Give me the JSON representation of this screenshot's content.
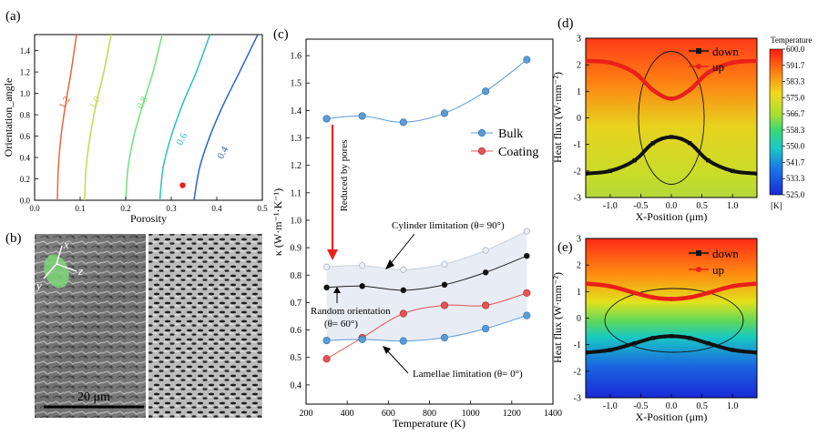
{
  "panels": {
    "a": {
      "label": "(a)",
      "xlabel": "Porosity",
      "ylabel": "Orientation_angle",
      "x_ticks": [
        "0.0",
        "0.1",
        "0.2",
        "0.3",
        "0.4",
        "0.5"
      ],
      "y_ticks": [
        "0.0",
        "0.2",
        "0.4",
        "0.6",
        "0.8",
        "1.0",
        "1.2",
        "1.4"
      ],
      "marker_label": ""
    },
    "b": {
      "label": "(b)",
      "scale_bar": "20 μm",
      "axes": {
        "x": "x",
        "y": "y",
        "z": "z"
      }
    },
    "c": {
      "label": "(c)",
      "xlabel": "Temperature (K)",
      "ylabel": "κ (W·m⁻¹·K⁻¹)",
      "x_ticks": [
        "200",
        "400",
        "600",
        "800",
        "1000",
        "1200",
        "1400"
      ],
      "y_ticks": [
        "0.4",
        "0.5",
        "0.6",
        "0.7",
        "0.8",
        "0.9",
        "1.0",
        "1.1",
        "1.2",
        "1.3",
        "1.4",
        "1.5",
        "1.6"
      ],
      "annotations": {
        "reduced": "Reduced by pores",
        "cylinder": "Cylinder limitation (θ= 90°)",
        "random1": "Random orientation",
        "random2": "(θ= 60°)",
        "lamellae": "Lamellae limitation (θ= 0°)"
      }
    },
    "d": {
      "label": "(d)",
      "xlabel": "X-Position (μm)",
      "ylabel": "Heat flux (W·mm⁻²)",
      "x_ticks": [
        "-1.0",
        "-0.5",
        "0.0",
        "0.5",
        "1.0"
      ],
      "y_ticks": [
        "-3",
        "-2",
        "-1",
        "0",
        "1",
        "2",
        "3"
      ],
      "legend": [
        "down",
        "up"
      ]
    },
    "e": {
      "label": "(e)",
      "xlabel": "X-Position (μm)",
      "ylabel": "Heat flux (W·mm⁻²)",
      "x_ticks": [
        "-1.0",
        "-0.5",
        "0.0",
        "0.5",
        "1.0"
      ],
      "y_ticks": [
        "-3",
        "-2",
        "-1",
        "0",
        "1",
        "2",
        "3"
      ],
      "legend": [
        "down",
        "up"
      ]
    },
    "colorbar": {
      "title": "Temperature",
      "unit": "[K]",
      "ticks": [
        "600.0",
        "591.7",
        "583.3",
        "575.0",
        "566.7",
        "558.3",
        "550.0",
        "541.7",
        "533.3",
        "525.0"
      ]
    }
  },
  "chart_data": [
    {
      "panel": "a",
      "type": "contour",
      "xlabel": "Porosity",
      "ylabel": "Orientation_angle",
      "xlim": [
        0.0,
        0.5
      ],
      "ylim": [
        0.0,
        1.55
      ],
      "contours": [
        {
          "level": "1.2",
          "color": "#e8663c",
          "points": [
            [
              0.05,
              0.0
            ],
            [
              0.052,
              0.3
            ],
            [
              0.058,
              0.6
            ],
            [
              0.068,
              0.9
            ],
            [
              0.08,
              1.2
            ],
            [
              0.092,
              1.55
            ]
          ]
        },
        {
          "level": "1.0",
          "color": "#c7d64a",
          "points": [
            [
              0.11,
              0.0
            ],
            [
              0.113,
              0.3
            ],
            [
              0.122,
              0.6
            ],
            [
              0.135,
              0.9
            ],
            [
              0.152,
              1.2
            ],
            [
              0.168,
              1.55
            ]
          ]
        },
        {
          "level": "0.8",
          "color": "#6fe07a",
          "points": [
            [
              0.2,
              0.0
            ],
            [
              0.205,
              0.3
            ],
            [
              0.218,
              0.6
            ],
            [
              0.238,
              0.9
            ],
            [
              0.26,
              1.2
            ],
            [
              0.28,
              1.55
            ]
          ]
        },
        {
          "level": "0.6",
          "color": "#2bbfc0",
          "points": [
            [
              0.275,
              0.0
            ],
            [
              0.282,
              0.3
            ],
            [
              0.3,
              0.6
            ],
            [
              0.325,
              0.9
            ],
            [
              0.355,
              1.2
            ],
            [
              0.385,
              1.55
            ]
          ]
        },
        {
          "level": "0.4",
          "color": "#2d63cf",
          "points": [
            [
              0.35,
              0.0
            ],
            [
              0.362,
              0.3
            ],
            [
              0.385,
              0.6
            ],
            [
              0.415,
              0.9
            ],
            [
              0.45,
              1.2
            ],
            [
              0.49,
              1.55
            ]
          ]
        }
      ],
      "marker": [
        0.325,
        0.14
      ]
    },
    {
      "panel": "c",
      "type": "line",
      "xlabel": "Temperature (K)",
      "ylabel": "κ (W·m⁻¹·K⁻¹)",
      "xlim": [
        200,
        1400
      ],
      "ylim": [
        0.33,
        1.66
      ],
      "series": [
        {
          "name": "Bulk",
          "color": "#5b9bd5",
          "x": [
            300,
            473,
            673,
            873,
            1073,
            1273
          ],
          "y": [
            1.37,
            1.38,
            1.357,
            1.39,
            1.47,
            1.585
          ]
        },
        {
          "name": "Coating",
          "color": "#e05555",
          "x": [
            300,
            473,
            673,
            873,
            1073,
            1273
          ],
          "y": [
            0.495,
            0.572,
            0.66,
            0.69,
            0.69,
            0.735
          ]
        },
        {
          "color": "#c9d2df",
          "x": [
            300,
            473,
            673,
            873,
            1073,
            1273
          ],
          "y": [
            0.83,
            0.835,
            0.82,
            0.84,
            0.89,
            0.96
          ]
        },
        {
          "color": "#222222",
          "x": [
            300,
            473,
            673,
            873,
            1073,
            1273
          ],
          "y": [
            0.755,
            0.76,
            0.745,
            0.765,
            0.81,
            0.87
          ]
        },
        {
          "color": "#5b9bd5",
          "x": [
            300,
            473,
            673,
            873,
            1073,
            1273
          ],
          "y": [
            0.562,
            0.566,
            0.56,
            0.572,
            0.605,
            0.653
          ]
        }
      ]
    },
    {
      "panel": "d",
      "type": "line",
      "xlabel": "X-Position (μm)",
      "ylabel": "Heat flux (W·mm⁻²)",
      "xlim": [
        -1.4,
        1.4
      ],
      "ylim": [
        -3,
        3
      ],
      "series": [
        {
          "name": "down",
          "color": "#111111",
          "x": [
            -1.4,
            -1.0,
            -0.6,
            -0.3,
            0.0,
            0.3,
            0.6,
            1.0,
            1.4
          ],
          "y": [
            -2.1,
            -2.0,
            -1.6,
            -0.95,
            -0.72,
            -0.95,
            -1.6,
            -2.0,
            -2.1
          ]
        },
        {
          "name": "up",
          "color": "#e8201a",
          "x": [
            -1.4,
            -1.0,
            -0.6,
            -0.3,
            0.0,
            0.3,
            0.6,
            1.0,
            1.4
          ],
          "y": [
            2.15,
            2.08,
            1.7,
            1.05,
            0.72,
            1.05,
            1.7,
            2.08,
            2.15
          ]
        }
      ]
    },
    {
      "panel": "e",
      "type": "line",
      "xlabel": "X-Position (μm)",
      "ylabel": "Heat flux (W·mm⁻²)",
      "xlim": [
        -1.4,
        1.4
      ],
      "ylim": [
        -3,
        3
      ],
      "series": [
        {
          "name": "down",
          "color": "#111111",
          "x": [
            -1.4,
            -1.0,
            -0.6,
            -0.3,
            0.0,
            0.3,
            0.6,
            1.0,
            1.4
          ],
          "y": [
            -1.3,
            -1.2,
            -0.95,
            -0.75,
            -0.68,
            -0.75,
            -0.95,
            -1.2,
            -1.3
          ]
        },
        {
          "name": "up",
          "color": "#e8201a",
          "x": [
            -1.4,
            -1.0,
            -0.6,
            -0.3,
            0.0,
            0.3,
            0.6,
            1.0,
            1.4
          ],
          "y": [
            1.3,
            1.2,
            0.95,
            0.78,
            0.72,
            0.78,
            0.95,
            1.2,
            1.3
          ]
        }
      ]
    }
  ]
}
